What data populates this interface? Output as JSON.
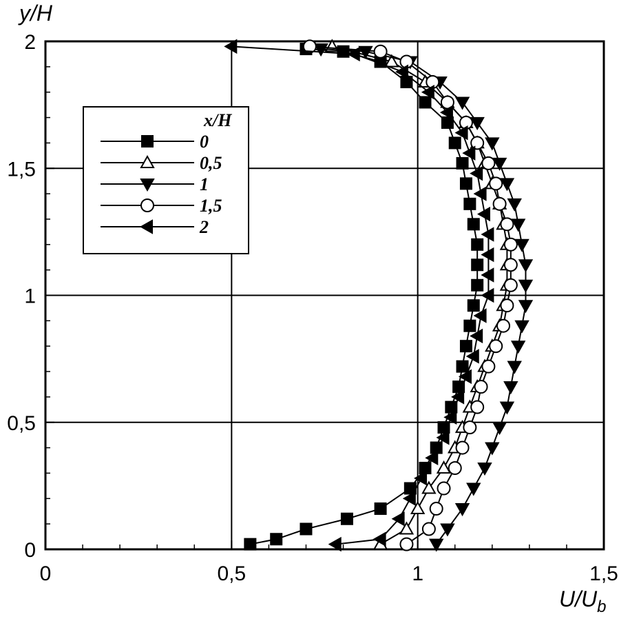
{
  "chart_data": {
    "type": "line",
    "xlabel": "U/U",
    "xlabel_sub": "b",
    "ylabel": "y/H",
    "xlim": [
      0,
      1.5
    ],
    "ylim": [
      0,
      2
    ],
    "x_ticks": [
      0,
      0.5,
      1,
      1.5
    ],
    "y_ticks": [
      0,
      0.5,
      1,
      1.5,
      2
    ],
    "x_tick_labels": [
      "0",
      "0,5",
      "1",
      "1,5"
    ],
    "y_tick_labels": [
      "0",
      "0,5",
      "1",
      "1,5",
      "2"
    ],
    "grid": true,
    "legend": {
      "title": "x/H",
      "placement": "upper-left"
    },
    "series": [
      {
        "name": "0",
        "marker": "square",
        "points": [
          [
            0.55,
            0.02
          ],
          [
            0.62,
            0.04
          ],
          [
            0.7,
            0.08
          ],
          [
            0.81,
            0.12
          ],
          [
            0.9,
            0.16
          ],
          [
            0.98,
            0.24
          ],
          [
            1.02,
            0.32
          ],
          [
            1.05,
            0.4
          ],
          [
            1.07,
            0.48
          ],
          [
            1.09,
            0.56
          ],
          [
            1.11,
            0.64
          ],
          [
            1.12,
            0.72
          ],
          [
            1.13,
            0.8
          ],
          [
            1.14,
            0.88
          ],
          [
            1.15,
            0.96
          ],
          [
            1.16,
            1.04
          ],
          [
            1.16,
            1.12
          ],
          [
            1.16,
            1.2
          ],
          [
            1.15,
            1.28
          ],
          [
            1.14,
            1.36
          ],
          [
            1.13,
            1.44
          ],
          [
            1.12,
            1.52
          ],
          [
            1.1,
            1.6
          ],
          [
            1.08,
            1.68
          ],
          [
            1.02,
            1.76
          ],
          [
            0.97,
            1.84
          ],
          [
            0.9,
            1.92
          ],
          [
            0.8,
            1.96
          ],
          [
            0.7,
            1.97
          ]
        ]
      },
      {
        "name": "0,5",
        "marker": "triangle-up-open",
        "points": [
          [
            0.9,
            0.02
          ],
          [
            0.97,
            0.08
          ],
          [
            1.0,
            0.16
          ],
          [
            1.03,
            0.24
          ],
          [
            1.07,
            0.32
          ],
          [
            1.1,
            0.4
          ],
          [
            1.12,
            0.48
          ],
          [
            1.14,
            0.56
          ],
          [
            1.16,
            0.64
          ],
          [
            1.18,
            0.72
          ],
          [
            1.2,
            0.8
          ],
          [
            1.22,
            0.88
          ],
          [
            1.23,
            0.96
          ],
          [
            1.24,
            1.04
          ],
          [
            1.24,
            1.12
          ],
          [
            1.24,
            1.2
          ],
          [
            1.23,
            1.28
          ],
          [
            1.22,
            1.36
          ],
          [
            1.2,
            1.44
          ],
          [
            1.18,
            1.52
          ],
          [
            1.16,
            1.6
          ],
          [
            1.13,
            1.68
          ],
          [
            1.08,
            1.76
          ],
          [
            1.02,
            1.84
          ],
          [
            0.93,
            1.92
          ],
          [
            0.77,
            1.98
          ]
        ]
      },
      {
        "name": "1",
        "marker": "triangle-down",
        "points": [
          [
            1.05,
            0.02
          ],
          [
            1.08,
            0.08
          ],
          [
            1.12,
            0.16
          ],
          [
            1.15,
            0.24
          ],
          [
            1.18,
            0.32
          ],
          [
            1.2,
            0.4
          ],
          [
            1.22,
            0.48
          ],
          [
            1.24,
            0.56
          ],
          [
            1.25,
            0.64
          ],
          [
            1.26,
            0.72
          ],
          [
            1.27,
            0.8
          ],
          [
            1.28,
            0.88
          ],
          [
            1.29,
            0.96
          ],
          [
            1.29,
            1.04
          ],
          [
            1.29,
            1.12
          ],
          [
            1.28,
            1.2
          ],
          [
            1.27,
            1.28
          ],
          [
            1.26,
            1.36
          ],
          [
            1.24,
            1.44
          ],
          [
            1.22,
            1.52
          ],
          [
            1.2,
            1.6
          ],
          [
            1.16,
            1.68
          ],
          [
            1.12,
            1.76
          ],
          [
            1.06,
            1.84
          ],
          [
            0.98,
            1.92
          ],
          [
            0.86,
            1.96
          ],
          [
            0.74,
            1.97
          ]
        ]
      },
      {
        "name": "1,5",
        "marker": "circle-open",
        "points": [
          [
            0.97,
            0.02
          ],
          [
            1.03,
            0.08
          ],
          [
            1.05,
            0.16
          ],
          [
            1.07,
            0.24
          ],
          [
            1.1,
            0.32
          ],
          [
            1.12,
            0.4
          ],
          [
            1.14,
            0.48
          ],
          [
            1.16,
            0.56
          ],
          [
            1.17,
            0.64
          ],
          [
            1.19,
            0.72
          ],
          [
            1.21,
            0.8
          ],
          [
            1.23,
            0.88
          ],
          [
            1.24,
            0.96
          ],
          [
            1.25,
            1.04
          ],
          [
            1.25,
            1.12
          ],
          [
            1.25,
            1.2
          ],
          [
            1.24,
            1.28
          ],
          [
            1.22,
            1.36
          ],
          [
            1.21,
            1.44
          ],
          [
            1.19,
            1.52
          ],
          [
            1.16,
            1.6
          ],
          [
            1.13,
            1.68
          ],
          [
            1.08,
            1.76
          ],
          [
            1.04,
            1.84
          ],
          [
            0.97,
            1.92
          ],
          [
            0.9,
            1.96
          ],
          [
            0.71,
            1.98
          ]
        ]
      },
      {
        "name": "2",
        "marker": "triangle-left",
        "points": [
          [
            0.78,
            0.02
          ],
          [
            0.9,
            0.04
          ],
          [
            0.95,
            0.12
          ],
          [
            0.98,
            0.2
          ],
          [
            1.01,
            0.28
          ],
          [
            1.04,
            0.36
          ],
          [
            1.07,
            0.44
          ],
          [
            1.09,
            0.52
          ],
          [
            1.11,
            0.6
          ],
          [
            1.13,
            0.68
          ],
          [
            1.15,
            0.76
          ],
          [
            1.16,
            0.84
          ],
          [
            1.17,
            0.92
          ],
          [
            1.19,
            1.0
          ],
          [
            1.19,
            1.08
          ],
          [
            1.19,
            1.16
          ],
          [
            1.19,
            1.24
          ],
          [
            1.18,
            1.32
          ],
          [
            1.17,
            1.4
          ],
          [
            1.16,
            1.48
          ],
          [
            1.14,
            1.56
          ],
          [
            1.12,
            1.64
          ],
          [
            1.08,
            1.72
          ],
          [
            1.03,
            1.8
          ],
          [
            0.96,
            1.88
          ],
          [
            0.83,
            1.95
          ],
          [
            0.5,
            1.98
          ]
        ]
      }
    ]
  }
}
